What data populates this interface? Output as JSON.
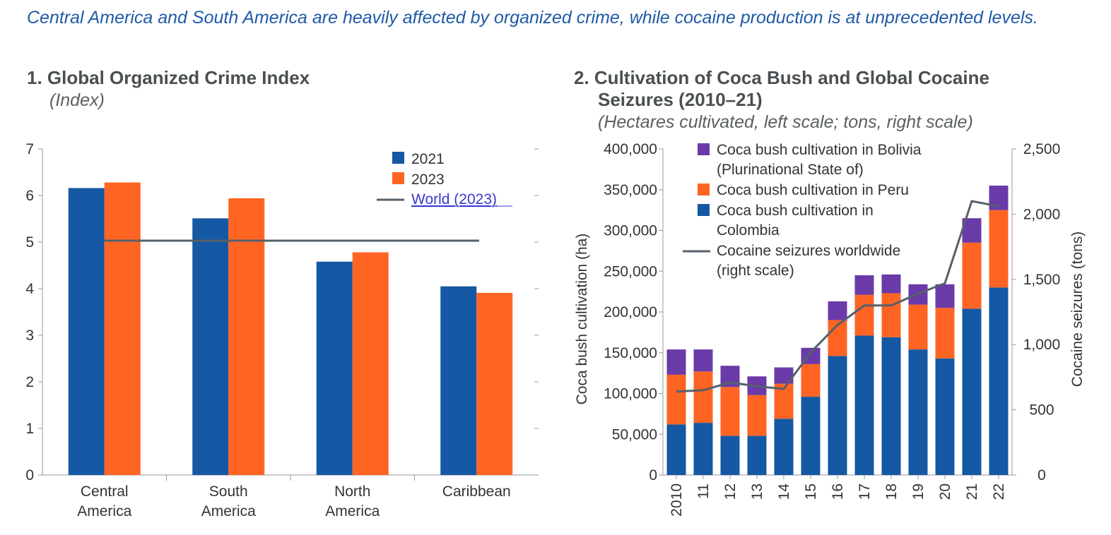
{
  "headline": "Central America and South America are heavily affected by organized crime, while cocaine production is at unprecedented levels.",
  "panel1": {
    "title": "1. Global Organized Crime Index",
    "subtitle": "(Index)"
  },
  "panel2": {
    "title_line1": "2. Cultivation of Coca Bush and Global Cocaine",
    "title_line2": "Seizures (2010–21)",
    "subtitle": "(Hectares cultivated, left scale; tons, right scale)"
  },
  "colors": {
    "blue": "#1558a3",
    "orange": "#ff6423",
    "purple": "#6a3aa8",
    "line": "#56606a",
    "axis": "#999999",
    "link": "#3a3ad0"
  },
  "chart_data": [
    {
      "type": "bar",
      "categories": [
        [
          "Central",
          "America"
        ],
        [
          "South",
          "America"
        ],
        [
          "North",
          "America"
        ],
        [
          "Caribbean"
        ]
      ],
      "series": [
        {
          "name": "2021",
          "values": [
            6.16,
            5.51,
            4.58,
            4.05
          ]
        },
        {
          "name": "2023",
          "values": [
            6.28,
            5.94,
            4.78,
            3.91
          ]
        }
      ],
      "reference_line": {
        "name": "World (2023)",
        "value": 5.03
      },
      "ylim": [
        0,
        7
      ],
      "yticks": [
        "0",
        "1",
        "2",
        "3",
        "4",
        "5",
        "6",
        "7"
      ],
      "legend_position": "top-right"
    },
    {
      "type": "bar",
      "stacked": true,
      "categories": [
        "2010",
        "11",
        "12",
        "13",
        "14",
        "15",
        "16",
        "17",
        "18",
        "19",
        "20",
        "21",
        "22"
      ],
      "series": [
        {
          "name": "Coca bush cultivation in Colombia",
          "label_lines": [
            "Coca bush cultivation in",
            "Colombia"
          ],
          "values": [
            62000,
            64000,
            48000,
            48000,
            69000,
            96000,
            146000,
            171000,
            169000,
            154000,
            143000,
            204000,
            230000
          ]
        },
        {
          "name": "Coca bush cultivation in Peru",
          "label_lines": [
            "Coca bush cultivation in Peru"
          ],
          "values": [
            61000,
            63000,
            60000,
            50000,
            43000,
            40000,
            44000,
            50000,
            54000,
            55000,
            62000,
            81000,
            95000
          ]
        },
        {
          "name": "Coca bush cultivation in Bolivia (Plurinational State of)",
          "label_lines": [
            "Coca bush cultivation in Bolivia",
            "(Plurinational State of)"
          ],
          "values": [
            31000,
            27000,
            26000,
            23000,
            20000,
            20000,
            23000,
            24000,
            23000,
            25000,
            29000,
            30000,
            30000
          ]
        }
      ],
      "line_series": {
        "name": "Cocaine seizures worldwide (right scale)",
        "label_lines": [
          "Cocaine seizures worldwide",
          "(right scale)"
        ],
        "values": [
          640,
          650,
          710,
          680,
          660,
          940,
          1150,
          1300,
          1300,
          1390,
          1470,
          2100,
          2060
        ]
      },
      "ylabel": "Coca bush cultivation (ha)",
      "y2label": "Cocaine seizures (tons)",
      "ylim": [
        0,
        400000
      ],
      "yticks": [
        "0",
        "50,000",
        "100,000",
        "150,000",
        "200,000",
        "250,000",
        "300,000",
        "350,000",
        "400,000"
      ],
      "y2lim": [
        0,
        2500
      ],
      "y2ticks": [
        "0",
        "500",
        "1,000",
        "1,500",
        "2,000",
        "2,500"
      ],
      "legend_position": "top-left"
    }
  ]
}
